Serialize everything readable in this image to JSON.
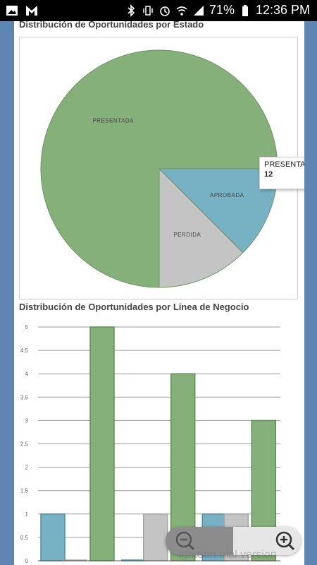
{
  "status_bar": {
    "battery_percent": "71%",
    "time": "12:36 PM",
    "icons": [
      "image-icon",
      "m-icon",
      "bluetooth-icon",
      "vibrate-icon",
      "alarm-icon",
      "wifi-icon",
      "signal-icon",
      "battery-icon"
    ]
  },
  "pie_chart": {
    "title": "Distribución de Oportunidades por Estado",
    "chart_data": {
      "type": "pie",
      "slices": [
        {
          "label": "PRESENTADA",
          "value": 12,
          "color": "#86b07a"
        },
        {
          "label": "APROBADA",
          "value": 2,
          "color": "#76b2c4"
        },
        {
          "label": "PERDIDA",
          "value": 2,
          "color": "#c4c4c4"
        }
      ]
    },
    "tooltip": {
      "label": "PRESENTADA",
      "value": "12"
    }
  },
  "bar_chart": {
    "title": "Distribución de Oportunidades por Línea de Negocio",
    "chart_data": {
      "type": "bar",
      "ylim": [
        0,
        5
      ],
      "yticks": [
        "0",
        "0.5",
        "1",
        "1.5",
        "2",
        "2.5",
        "3",
        "3.5",
        "4",
        "4.5",
        "5"
      ],
      "groups": 3,
      "series": [
        {
          "color": "#76b2c4",
          "values": [
            1,
            0,
            1
          ]
        },
        {
          "color": "#c4c4c4",
          "values": [
            0,
            1,
            1
          ]
        },
        {
          "color": "#86b07a",
          "values": [
            5,
            4,
            3
          ]
        }
      ]
    }
  },
  "watermark": "ighteon trial version"
}
